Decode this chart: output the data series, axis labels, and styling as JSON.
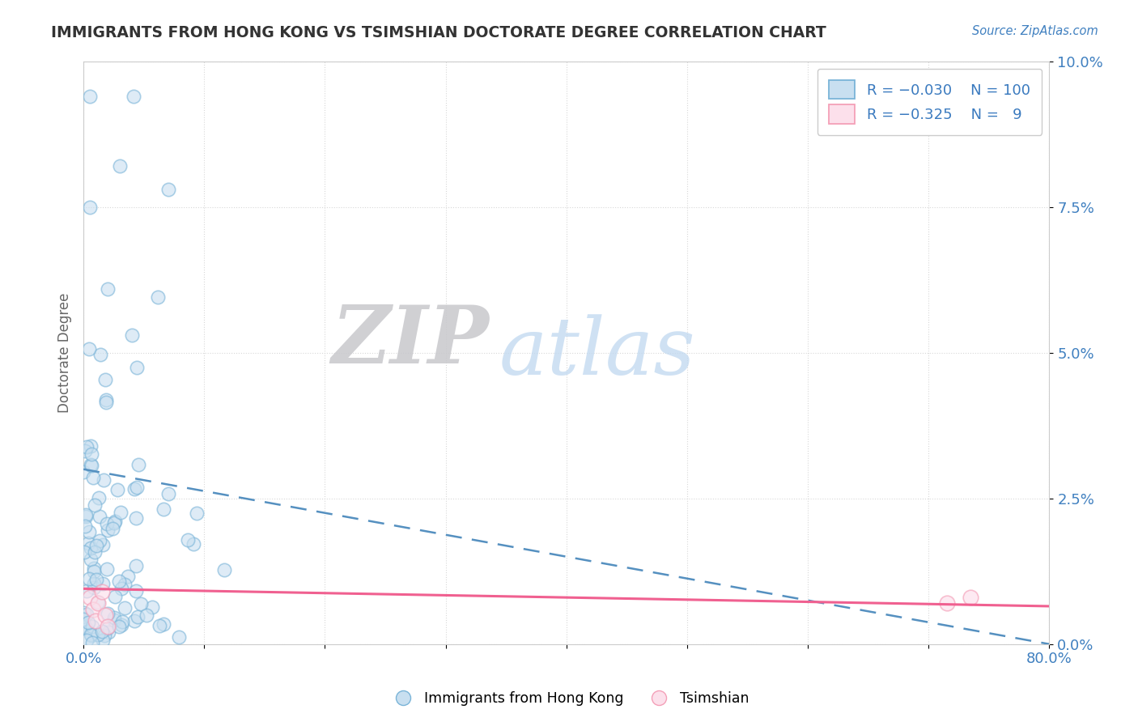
{
  "title": "IMMIGRANTS FROM HONG KONG VS TSIMSHIAN DOCTORATE DEGREE CORRELATION CHART",
  "source_text": "Source: ZipAtlas.com",
  "ylabel": "Doctorate Degree",
  "yticks": [
    "0.0%",
    "2.5%",
    "5.0%",
    "7.5%",
    "10.0%"
  ],
  "ytick_vals": [
    0.0,
    0.025,
    0.05,
    0.075,
    0.1
  ],
  "blue_color": "#7ab4d8",
  "blue_fill": "#c8dff0",
  "pink_color": "#f4a0b8",
  "pink_fill": "#fce0eb",
  "trend_blue": "#5590c0",
  "trend_pink": "#f06090",
  "xlim": [
    0.0,
    0.8
  ],
  "ylim": [
    0.0,
    0.1
  ],
  "watermark_zip": "ZIP",
  "watermark_atlas": "atlas",
  "background": "#ffffff",
  "grid_color": "#d8d8d8",
  "blue_trend_x0": 0.0,
  "blue_trend_y0": 0.03,
  "blue_trend_x1": 0.8,
  "blue_trend_y1": 0.0,
  "pink_trend_x0": 0.0,
  "pink_trend_y0": 0.0095,
  "pink_trend_x1": 0.8,
  "pink_trend_y1": 0.0065,
  "tick_color": "#4080c0",
  "title_color": "#333333",
  "source_color": "#4080c0",
  "ylabel_color": "#666666"
}
